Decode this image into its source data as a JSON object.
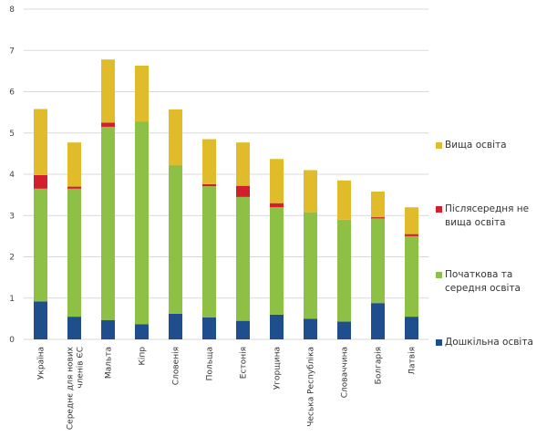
{
  "chart_data": {
    "type": "bar",
    "stacked": true,
    "title": "",
    "xlabel": "",
    "ylabel": "",
    "ylim": [
      0,
      8
    ],
    "yticks": [
      0,
      1,
      2,
      3,
      4,
      5,
      6,
      7,
      8
    ],
    "grid": true,
    "legend_position": "right",
    "categories": [
      "Україна",
      "Середнє для нових членів ЄС",
      "Мальта",
      "Кіпр",
      "Словенія",
      "Польща",
      "Естонія",
      "Угорщина",
      "Чеська Республіка",
      "Словаччина",
      "Болгарія",
      "Латвія"
    ],
    "series": [
      {
        "name": "Дошкільна освіта",
        "color": "#1f4e8c",
        "values": [
          0.92,
          0.55,
          0.47,
          0.37,
          0.62,
          0.53,
          0.45,
          0.6,
          0.5,
          0.43,
          0.88,
          0.55
        ]
      },
      {
        "name": "Початкова та середня освіта",
        "color": "#8fc046",
        "values": [
          2.73,
          3.1,
          4.68,
          4.91,
          3.6,
          3.18,
          3.0,
          2.6,
          2.58,
          2.47,
          2.05,
          1.95
        ]
      },
      {
        "name": "Післясередня не вища освіта",
        "color": "#d11f2e",
        "values": [
          0.33,
          0.05,
          0.1,
          0.0,
          0.0,
          0.05,
          0.27,
          0.1,
          0.0,
          0.0,
          0.03,
          0.05
        ]
      },
      {
        "name": "Вища освіта",
        "color": "#e0bc2a",
        "values": [
          1.6,
          1.07,
          1.53,
          1.35,
          1.35,
          1.09,
          1.05,
          1.07,
          1.02,
          0.95,
          0.62,
          0.65
        ]
      }
    ]
  }
}
